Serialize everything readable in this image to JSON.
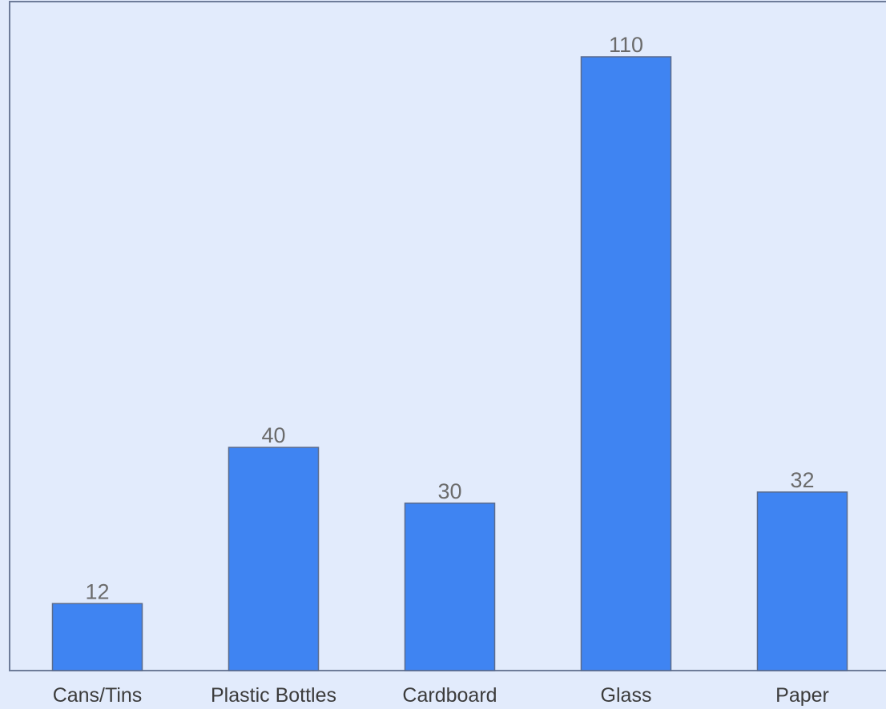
{
  "chart_data": {
    "type": "bar",
    "categories": [
      "Cans/Tins",
      "Plastic Bottles",
      "Cardboard",
      "Glass",
      "Paper"
    ],
    "values": [
      12,
      40,
      30,
      110,
      32
    ],
    "title": "",
    "xlabel": "",
    "ylabel": "",
    "ylim": [
      0,
      120
    ],
    "grid": false,
    "legend": "none",
    "data_labels": [
      "12",
      "40",
      "30",
      "110",
      "32"
    ]
  },
  "colors": {
    "background": "#e2ebfc",
    "bar_fill": "#3f84f2",
    "bar_stroke": "#5a6b8c",
    "axis": "#6e7c99",
    "data_label": "#6b6b6b",
    "tick_label": "#3c3c3c"
  }
}
